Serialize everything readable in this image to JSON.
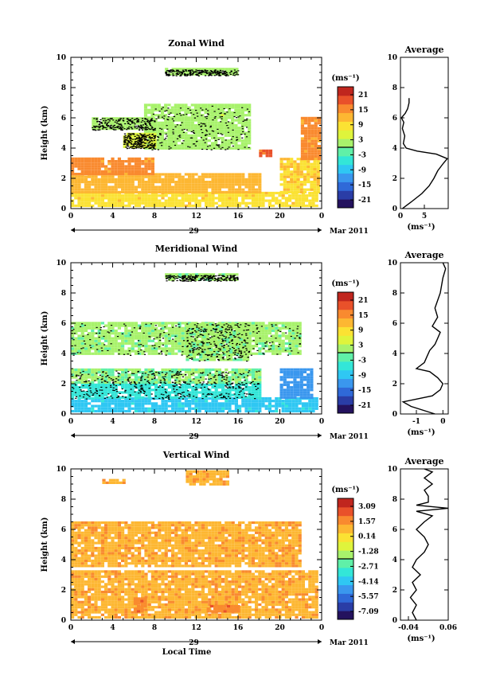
{
  "date_label": "Mar 2011",
  "day_label": "29",
  "xlabel": "Local Time",
  "ylabel": "Height (km)",
  "unit_label": "(ms⁻¹)",
  "avg_title": "Average",
  "x_ticks": [
    "0",
    "4",
    "8",
    "12",
    "16",
    "20",
    "0"
  ],
  "y_ticks": [
    "0",
    "2",
    "4",
    "6",
    "8",
    "10"
  ],
  "chart_data": [
    {
      "type": "heatmap",
      "title": "Zonal Wind",
      "ylabel": "Height (km)",
      "xlim": [
        0,
        24
      ],
      "ylim": [
        0,
        10
      ],
      "colorbar": {
        "ticks": [
          "21",
          "15",
          "9",
          "3",
          "-3",
          "-9",
          "-15",
          "-21"
        ],
        "range": [
          -24,
          24
        ]
      },
      "blobs": [
        {
          "x": [
            0,
            24
          ],
          "y": [
            0.1,
            1.1
          ],
          "value": 9
        },
        {
          "x": [
            0,
            18
          ],
          "y": [
            1.0,
            2.2
          ],
          "value": 12
        },
        {
          "x": [
            0,
            8
          ],
          "y": [
            2.2,
            3.3
          ],
          "value": 15
        },
        {
          "x": [
            20,
            24
          ],
          "y": [
            1.0,
            3.2
          ],
          "value": 10
        },
        {
          "x": [
            22,
            24
          ],
          "y": [
            3.2,
            6.0
          ],
          "value": 15
        },
        {
          "x": [
            18,
            19
          ],
          "y": [
            3.4,
            3.9
          ],
          "value": 18
        },
        {
          "x": [
            2,
            8
          ],
          "y": [
            5.2,
            6.0
          ],
          "value": 2
        },
        {
          "x": [
            7,
            17
          ],
          "y": [
            3.9,
            6.8
          ],
          "value": 2
        },
        {
          "x": [
            9,
            16
          ],
          "y": [
            8.8,
            9.2
          ],
          "value": 2
        },
        {
          "x": [
            5,
            8
          ],
          "y": [
            4.0,
            5.0
          ],
          "value": 5
        }
      ],
      "average": {
        "title": "Average",
        "xlim": [
          0,
          10
        ],
        "xticks": [
          "0",
          "5"
        ],
        "xlabel": "(ms⁻¹)",
        "profile": [
          [
            0.4,
            0.0
          ],
          [
            2.5,
            0.5
          ],
          [
            4.5,
            1.0
          ],
          [
            6.0,
            1.5
          ],
          [
            7.0,
            2.0
          ],
          [
            7.8,
            2.5
          ],
          [
            9.0,
            3.0
          ],
          [
            9.8,
            3.3
          ],
          [
            7.5,
            3.6
          ],
          [
            3.5,
            3.8
          ],
          [
            1.2,
            4.0
          ],
          [
            0.6,
            4.3
          ],
          [
            0.9,
            4.8
          ],
          [
            0.4,
            5.3
          ],
          [
            0.7,
            5.7
          ],
          [
            0.2,
            6.0
          ],
          [
            1.0,
            6.3
          ],
          [
            1.5,
            6.6
          ],
          [
            1.8,
            7.0
          ],
          [
            1.8,
            7.3
          ]
        ]
      }
    },
    {
      "type": "heatmap",
      "title": "Meridional Wind",
      "ylabel": "Height (km)",
      "xlim": [
        0,
        24
      ],
      "ylim": [
        0,
        10
      ],
      "colorbar": {
        "ticks": [
          "21",
          "15",
          "9",
          "3",
          "-3",
          "-9",
          "-15",
          "-21"
        ],
        "range": [
          -24,
          24
        ]
      },
      "blobs": [
        {
          "x": [
            0,
            24
          ],
          "y": [
            0.1,
            1.1
          ],
          "value": -8
        },
        {
          "x": [
            0,
            18
          ],
          "y": [
            1.0,
            2.0
          ],
          "value": -5
        },
        {
          "x": [
            0,
            18
          ],
          "y": [
            2.0,
            2.9
          ],
          "value": 0
        },
        {
          "x": [
            0,
            22
          ],
          "y": [
            3.9,
            6.0
          ],
          "value": 1
        },
        {
          "x": [
            20,
            23
          ],
          "y": [
            1.0,
            3.0
          ],
          "value": -12
        },
        {
          "x": [
            11,
            17
          ],
          "y": [
            3.5,
            6.0
          ],
          "value": 1
        },
        {
          "x": [
            9,
            16
          ],
          "y": [
            8.8,
            9.2
          ],
          "value": 1
        }
      ],
      "average": {
        "title": "Average",
        "xlim": [
          -1.6,
          0.2
        ],
        "xticks": [
          "-1",
          "0"
        ],
        "xlabel": "(ms⁻¹)",
        "profile": [
          [
            -0.3,
            0.0
          ],
          [
            -1.2,
            0.5
          ],
          [
            -1.5,
            0.8
          ],
          [
            -0.4,
            1.2
          ],
          [
            -0.1,
            1.6
          ],
          [
            0.0,
            2.0
          ],
          [
            -0.2,
            2.4
          ],
          [
            -0.5,
            2.8
          ],
          [
            -1.0,
            3.0
          ],
          [
            -0.7,
            3.4
          ],
          [
            -0.6,
            3.8
          ],
          [
            -0.5,
            4.2
          ],
          [
            -0.3,
            4.6
          ],
          [
            -0.2,
            5.0
          ],
          [
            -0.1,
            5.4
          ],
          [
            -0.4,
            5.8
          ],
          [
            -0.2,
            6.4
          ],
          [
            -0.3,
            7.0
          ],
          [
            -0.1,
            8.0
          ],
          [
            0.0,
            9.0
          ],
          [
            0.1,
            9.6
          ],
          [
            0.0,
            10.0
          ]
        ]
      }
    },
    {
      "type": "heatmap",
      "title": "Vertical Wind",
      "ylabel": "Height (km)",
      "xlim": [
        0,
        24
      ],
      "ylim": [
        0,
        10
      ],
      "colorbar": {
        "ticks": [
          "3.09",
          "1.57",
          "0.14",
          "-1.28",
          "-2.71",
          "-4.14",
          "-5.57",
          "-7.09"
        ],
        "range": [
          -8.5,
          4.5
        ]
      },
      "blobs": [
        {
          "x": [
            0,
            24
          ],
          "y": [
            0.1,
            3.3
          ],
          "value": 1.5
        },
        {
          "x": [
            0,
            22
          ],
          "y": [
            3.5,
            6.5
          ],
          "value": 1.5
        },
        {
          "x": [
            11,
            15
          ],
          "y": [
            8.9,
            9.9
          ],
          "value": 1.5
        },
        {
          "x": [
            3,
            5
          ],
          "y": [
            9.0,
            9.2
          ],
          "value": 1.5
        },
        {
          "x": [
            6,
            7
          ],
          "y": [
            0.5,
            1.5
          ],
          "value": 2.3
        },
        {
          "x": [
            13,
            16
          ],
          "y": [
            0.5,
            1.0
          ],
          "value": 2.3
        }
      ],
      "average": {
        "title": "Average",
        "xlim": [
          -0.06,
          0.06
        ],
        "xticks": [
          "-0.04",
          "0.06"
        ],
        "xlabel": "(ms⁻¹)",
        "profile": [
          [
            -0.02,
            0.0
          ],
          [
            -0.03,
            0.5
          ],
          [
            -0.02,
            1.0
          ],
          [
            -0.035,
            1.5
          ],
          [
            -0.02,
            2.0
          ],
          [
            -0.03,
            2.5
          ],
          [
            -0.01,
            3.0
          ],
          [
            -0.03,
            3.5
          ],
          [
            -0.02,
            4.0
          ],
          [
            0.0,
            4.5
          ],
          [
            0.01,
            5.0
          ],
          [
            0.0,
            5.5
          ],
          [
            -0.02,
            6.0
          ],
          [
            0.0,
            6.5
          ],
          [
            0.02,
            6.9
          ],
          [
            -0.02,
            7.2
          ],
          [
            0.06,
            7.4
          ],
          [
            -0.02,
            7.6
          ],
          [
            0.01,
            7.8
          ],
          [
            0.01,
            8.2
          ],
          [
            0.0,
            8.6
          ],
          [
            0.02,
            9.0
          ],
          [
            0.0,
            9.4
          ],
          [
            0.02,
            9.8
          ],
          [
            0.0,
            10.0
          ]
        ]
      }
    }
  ]
}
